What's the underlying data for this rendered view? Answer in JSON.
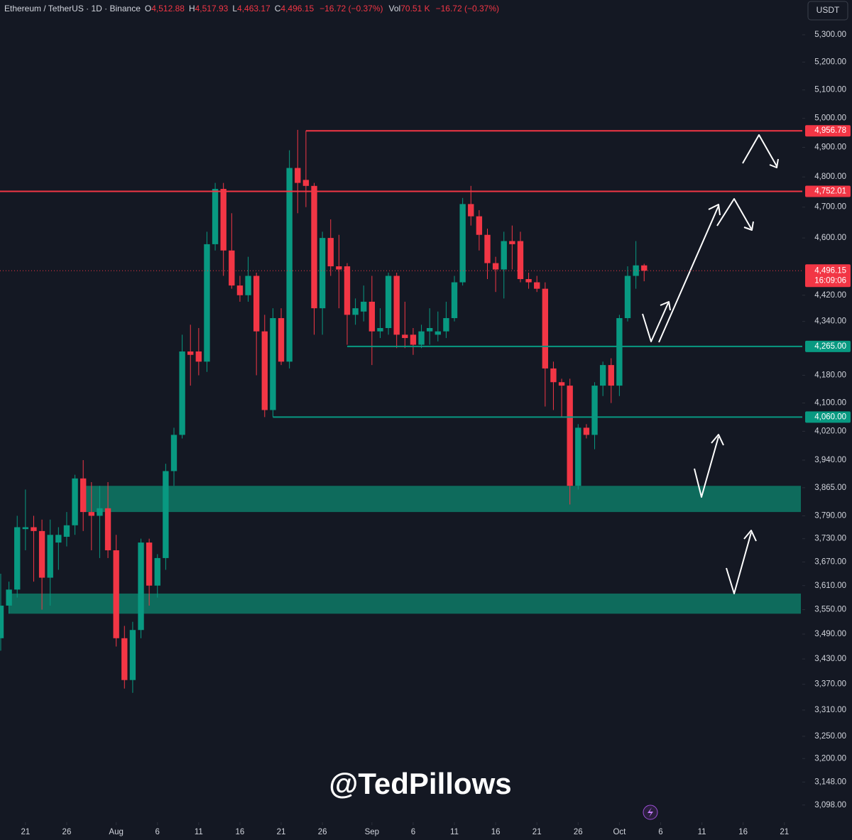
{
  "chart_data": {
    "type": "candlestick",
    "header": {
      "symbol": "Ethereum / TetherUS · 1D · Binance",
      "fields": [
        {
          "key": "O",
          "value": "4,512.88"
        },
        {
          "key": "H",
          "value": "4,517.93"
        },
        {
          "key": "L",
          "value": "4,463.17"
        },
        {
          "key": "C",
          "value": "4,496.15"
        }
      ],
      "change": "−16.72 (−0.37%)",
      "vol_key": "Vol",
      "vol": "70.51 K",
      "vol_change": "−16.72 (−0.37%)"
    },
    "currency": "USDT",
    "watermark": "@TedPillows",
    "up_color": "#089981",
    "down_color": "#f23645",
    "log_scale": true,
    "x": [
      "Jul 18",
      "Jul 19",
      "Jul 20",
      "Jul 21",
      "Jul 22",
      "Jul 23",
      "Jul 24",
      "Jul 25",
      "Jul 26",
      "Jul 27",
      "Jul 28",
      "Jul 29",
      "Jul 30",
      "Jul 31",
      "Aug 1",
      "Aug 2",
      "Aug 3",
      "Aug 4",
      "Aug 5",
      "Aug 6",
      "Aug 7",
      "Aug 8",
      "Aug 9",
      "Aug 10",
      "Aug 11",
      "Aug 12",
      "Aug 13",
      "Aug 14",
      "Aug 15",
      "Aug 16",
      "Aug 17",
      "Aug 18",
      "Aug 19",
      "Aug 20",
      "Aug 21",
      "Aug 22",
      "Aug 23",
      "Aug 24",
      "Aug 25",
      "Aug 26",
      "Aug 27",
      "Aug 28",
      "Aug 29",
      "Aug 30",
      "Aug 31",
      "Sep 1",
      "Sep 2",
      "Sep 3",
      "Sep 4",
      "Sep 5",
      "Sep 6",
      "Sep 7",
      "Sep 8",
      "Sep 9",
      "Sep 10",
      "Sep 11",
      "Sep 12",
      "Sep 13",
      "Sep 14",
      "Sep 15",
      "Sep 16",
      "Sep 17",
      "Sep 18",
      "Sep 19",
      "Sep 20",
      "Sep 21",
      "Sep 22",
      "Sep 23",
      "Sep 24",
      "Sep 25",
      "Sep 26",
      "Sep 27",
      "Sep 28",
      "Sep 29",
      "Sep 30",
      "Oct 1",
      "Oct 2",
      "Oct 3",
      "Oct 4"
    ],
    "open": [
      3480,
      3560,
      3600,
      3755,
      3760,
      3750,
      3630,
      3720,
      3735,
      3765,
      3890,
      3800,
      3790,
      3810,
      3700,
      3480,
      3380,
      3500,
      3720,
      3610,
      3680,
      3910,
      4010,
      4250,
      4250,
      4220,
      4580,
      4760,
      4560,
      4450,
      4420,
      4480,
      4310,
      4080,
      4350,
      4220,
      4830,
      4790,
      4770,
      4380,
      4600,
      4510,
      4510,
      4360,
      4370,
      4400,
      4310,
      4320,
      4480,
      4300,
      4300,
      4270,
      4310,
      4300,
      4310,
      4350,
      4460,
      4710,
      4670,
      4610,
      4520,
      4500,
      4590,
      4590,
      4470,
      4460,
      4440,
      4200,
      4160,
      4150,
      3870,
      4030,
      4010,
      4150,
      4210,
      4150,
      4350,
      4480,
      4512.88
    ],
    "high": [
      3640,
      3620,
      3790,
      3860,
      3790,
      3780,
      3780,
      3760,
      3800,
      3900,
      3940,
      3880,
      3870,
      3880,
      3740,
      3510,
      3520,
      3730,
      3730,
      3690,
      3930,
      4030,
      4300,
      4330,
      4320,
      4620,
      4780,
      4780,
      4680,
      4480,
      4540,
      4490,
      4360,
      4380,
      4380,
      4890,
      4960,
      4957,
      4780,
      4620,
      4660,
      4610,
      4520,
      4410,
      4450,
      4480,
      4380,
      4490,
      4490,
      4400,
      4320,
      4330,
      4380,
      4370,
      4400,
      4480,
      4730,
      4770,
      4690,
      4630,
      4540,
      4620,
      4640,
      4620,
      4490,
      4480,
      4460,
      4220,
      4170,
      4170,
      4040,
      4040,
      4160,
      4220,
      4230,
      4360,
      4510,
      4590,
      4517.93
    ],
    "low": [
      3450,
      3540,
      3580,
      3700,
      3620,
      3550,
      3560,
      3650,
      3710,
      3740,
      3750,
      3700,
      3680,
      3680,
      3460,
      3360,
      3350,
      3480,
      3560,
      3580,
      3650,
      3870,
      4000,
      4150,
      4180,
      4190,
      4560,
      4480,
      4440,
      4400,
      4400,
      4180,
      4060,
      4060,
      4210,
      4200,
      4680,
      4700,
      4300,
      4300,
      4480,
      4380,
      4270,
      4330,
      4340,
      4210,
      4290,
      4300,
      4260,
      4260,
      4240,
      4260,
      4270,
      4280,
      4290,
      4340,
      4450,
      4640,
      4560,
      4470,
      4430,
      4410,
      4500,
      4460,
      4440,
      4430,
      4090,
      4080,
      4060,
      3820,
      3860,
      4000,
      3970,
      4120,
      4100,
      4120,
      4340,
      4440,
      4463.17
    ],
    "close": [
      3560,
      3600,
      3760,
      3760,
      3750,
      3630,
      3740,
      3740,
      3765,
      3890,
      3800,
      3790,
      3810,
      3700,
      3480,
      3380,
      3500,
      3720,
      3610,
      3680,
      3910,
      4010,
      4250,
      4240,
      4220,
      4580,
      4760,
      4560,
      4450,
      4420,
      4480,
      4310,
      4080,
      4350,
      4220,
      4830,
      4780,
      4770,
      4380,
      4600,
      4510,
      4500,
      4360,
      4380,
      4400,
      4310,
      4320,
      4480,
      4300,
      4290,
      4270,
      4310,
      4320,
      4310,
      4350,
      4460,
      4710,
      4670,
      4610,
      4520,
      4500,
      4590,
      4580,
      4470,
      4460,
      4440,
      4200,
      4160,
      4150,
      3870,
      4030,
      4010,
      4150,
      4210,
      4150,
      4350,
      4480,
      4512.88,
      4496.15
    ],
    "xlim": [
      "Jul 18",
      "Oct 23"
    ],
    "xticks": [
      {
        "value": "Jul 21",
        "label": "21"
      },
      {
        "value": "Jul 26",
        "label": "26"
      },
      {
        "value": "Aug 1",
        "label": "Aug"
      },
      {
        "value": "Aug 6",
        "label": "6"
      },
      {
        "value": "Aug 11",
        "label": "11"
      },
      {
        "value": "Aug 16",
        "label": "16"
      },
      {
        "value": "Aug 21",
        "label": "21"
      },
      {
        "value": "Aug 26",
        "label": "26"
      },
      {
        "value": "Sep 1",
        "label": "Sep"
      },
      {
        "value": "Sep 6",
        "label": "6"
      },
      {
        "value": "Sep 11",
        "label": "11"
      },
      {
        "value": "Sep 16",
        "label": "16"
      },
      {
        "value": "Sep 21",
        "label": "21"
      },
      {
        "value": "Sep 26",
        "label": "26"
      },
      {
        "value": "Oct 1",
        "label": "Oct"
      },
      {
        "value": "Oct 6",
        "label": "6"
      },
      {
        "value": "Oct 11",
        "label": "11"
      },
      {
        "value": "Oct 16",
        "label": "16"
      },
      {
        "value": "Oct 21",
        "label": "21"
      }
    ],
    "ylim": [
      3061,
      5430
    ],
    "yticks": [
      {
        "value": 5300,
        "label": "5,300.00"
      },
      {
        "value": 5200,
        "label": "5,200.00"
      },
      {
        "value": 5100,
        "label": "5,100.00"
      },
      {
        "value": 5000,
        "label": "5,000.00"
      },
      {
        "value": 4900,
        "label": "4,900.00"
      },
      {
        "value": 4800,
        "label": "4,800.00"
      },
      {
        "value": 4700,
        "label": "4,700.00"
      },
      {
        "value": 4600,
        "label": "4,600.00"
      },
      {
        "value": 4420,
        "label": "4,420.00"
      },
      {
        "value": 4340,
        "label": "4,340.00"
      },
      {
        "value": 4180,
        "label": "4,180.00"
      },
      {
        "value": 4100,
        "label": "4,100.00"
      },
      {
        "value": 4020,
        "label": "4,020.00"
      },
      {
        "value": 3940,
        "label": "3,940.00"
      },
      {
        "value": 3865,
        "label": "3,865.00"
      },
      {
        "value": 3790,
        "label": "3,790.00"
      },
      {
        "value": 3730,
        "label": "3,730.00"
      },
      {
        "value": 3670,
        "label": "3,670.00"
      },
      {
        "value": 3610,
        "label": "3,610.00"
      },
      {
        "value": 3550,
        "label": "3,550.00"
      },
      {
        "value": 3490,
        "label": "3,490.00"
      },
      {
        "value": 3430,
        "label": "3,430.00"
      },
      {
        "value": 3370,
        "label": "3,370.00"
      },
      {
        "value": 3310,
        "label": "3,310.00"
      },
      {
        "value": 3250,
        "label": "3,250.00"
      },
      {
        "value": 3200,
        "label": "3,200.00"
      },
      {
        "value": 3148,
        "label": "3,148.00"
      },
      {
        "value": 3098,
        "label": "3,098.00"
      }
    ],
    "levels": [
      {
        "value": 4956.78,
        "label": "4,956.78",
        "color": "#f23645",
        "start": "Aug 24"
      },
      {
        "value": 4752.01,
        "label": "4,752.01",
        "color": "#f23645",
        "start": "Jul 18"
      },
      {
        "value": 4265,
        "label": "4,265.00",
        "color": "#089981",
        "start": "Aug 29"
      },
      {
        "value": 4060,
        "label": "4,060.00",
        "color": "#089981",
        "start": "Aug 20"
      }
    ],
    "zones": [
      {
        "low": 3800,
        "high": 3870,
        "start": "Jul 28",
        "color": "#0e6b5c"
      },
      {
        "low": 3540,
        "high": 3590,
        "start": "Jul 19",
        "color": "#0e6b5c"
      }
    ],
    "last_price": {
      "value": 4496.15,
      "label": "4,496.15",
      "countdown": "16:09:06"
    }
  }
}
